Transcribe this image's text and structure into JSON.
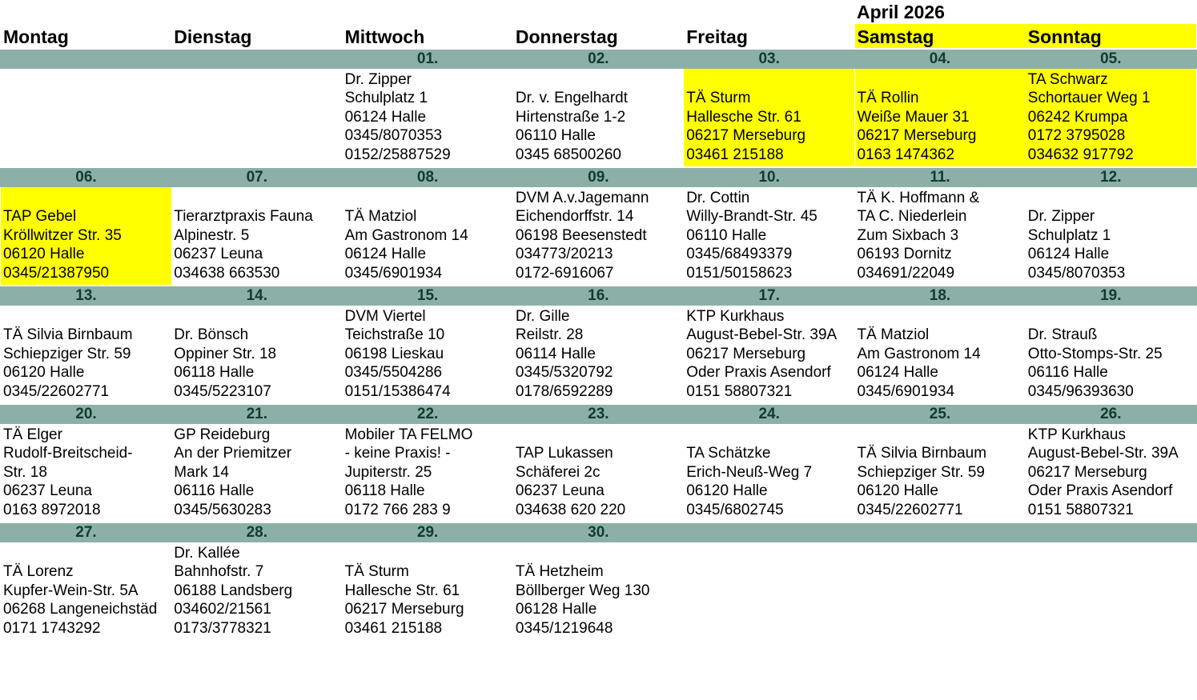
{
  "title": "April 2026",
  "highlight_color": "#ffff00",
  "bar_color": "#8cb0a8",
  "weekdays": [
    {
      "label": "Montag",
      "weekend": false
    },
    {
      "label": "Dienstag",
      "weekend": false
    },
    {
      "label": "Mittwoch",
      "weekend": false
    },
    {
      "label": "Donnerstag",
      "weekend": false
    },
    {
      "label": "Freitag",
      "weekend": false
    },
    {
      "label": "Samstag",
      "weekend": true
    },
    {
      "label": "Sonntag",
      "weekend": true
    }
  ],
  "weeks": [
    {
      "days": [
        {
          "date": "",
          "lines": [],
          "highlight": false
        },
        {
          "date": "",
          "lines": [],
          "highlight": false
        },
        {
          "date": "01.",
          "lines": [
            "Dr. Zipper",
            "Schulplatz 1",
            "06124 Halle",
            "0345/8070353",
            "0152/25887529"
          ],
          "highlight": false
        },
        {
          "date": "02.",
          "lines": [
            "Dr. v. Engelhardt",
            "Hirtenstraße 1-2",
            "06110 Halle",
            "0345 68500260"
          ],
          "highlight": false
        },
        {
          "date": "03.",
          "lines": [
            "TÄ Sturm",
            "Hallesche Str. 61",
            "06217 Merseburg",
            "03461 215188"
          ],
          "highlight": true
        },
        {
          "date": "04.",
          "lines": [
            "TÄ Rollin",
            "Weiße Mauer 31",
            "06217 Merseburg",
            "0163 1474362"
          ],
          "highlight": true
        },
        {
          "date": "05.",
          "lines": [
            "TA Schwarz",
            "Schortauer Weg 1",
            "06242 Krumpa",
            "0172 3795028",
            "034632 917792"
          ],
          "highlight": true
        }
      ]
    },
    {
      "days": [
        {
          "date": "06.",
          "lines": [
            "TAP Gebel",
            "Kröllwitzer Str. 35",
            "06120 Halle",
            "0345/21387950"
          ],
          "highlight": true
        },
        {
          "date": "07.",
          "lines": [
            "Tierarztpraxis Fauna",
            "Alpinestr. 5",
            "06237 Leuna",
            "034638 663530"
          ],
          "highlight": false
        },
        {
          "date": "08.",
          "lines": [
            "TÄ Matziol",
            "Am Gastronom 14",
            "06124 Halle",
            "0345/6901934"
          ],
          "highlight": false
        },
        {
          "date": "09.",
          "lines": [
            "DVM A.v.Jagemann",
            "Eichendorffstr. 14",
            "06198 Beesenstedt",
            "034773/20213",
            "0172-6916067"
          ],
          "highlight": false
        },
        {
          "date": "10.",
          "lines": [
            "Dr. Cottin",
            "Willy-Brandt-Str. 45",
            "06110 Halle",
            "0345/68493379",
            "0151/50158623"
          ],
          "highlight": false
        },
        {
          "date": "11.",
          "lines": [
            "TÄ K. Hoffmann &",
            "TA C. Niederlein",
            "Zum Sixbach 3",
            "06193 Dornitz",
            "034691/22049"
          ],
          "highlight": false
        },
        {
          "date": "12.",
          "lines": [
            "Dr. Zipper",
            "Schulplatz 1",
            "06124 Halle",
            "0345/8070353"
          ],
          "highlight": false
        }
      ]
    },
    {
      "days": [
        {
          "date": "13.",
          "lines": [
            "TÄ Silvia Birnbaum",
            "Schiepziger Str. 59",
            "06120 Halle",
            "0345/22602771"
          ],
          "highlight": false
        },
        {
          "date": "14.",
          "lines": [
            "Dr. Bönsch",
            "Oppiner Str. 18",
            "06118 Halle",
            "0345/5223107"
          ],
          "highlight": false
        },
        {
          "date": "15.",
          "lines": [
            "DVM Viertel",
            "Teichstraße 10",
            "06198 Lieskau",
            "0345/5504286",
            "0151/15386474"
          ],
          "highlight": false
        },
        {
          "date": "16.",
          "lines": [
            "Dr. Gille",
            "Reilstr. 28",
            "06114 Halle",
            "0345/5320792",
            "0178/6592289"
          ],
          "highlight": false
        },
        {
          "date": "17.",
          "lines": [
            "KTP Kurkhaus",
            "August-Bebel-Str. 39A",
            "06217 Merseburg",
            "Oder Praxis Asendorf",
            "0151 58807321"
          ],
          "highlight": false
        },
        {
          "date": "18.",
          "lines": [
            "TÄ Matziol",
            "Am Gastronom 14",
            "06124 Halle",
            "0345/6901934"
          ],
          "highlight": false
        },
        {
          "date": "19.",
          "lines": [
            "Dr. Strauß",
            "Otto-Stomps-Str. 25",
            "06116 Halle",
            "0345/96393630"
          ],
          "highlight": false
        }
      ]
    },
    {
      "days": [
        {
          "date": "20.",
          "lines": [
            "TÄ Elger",
            "Rudolf-Breitscheid-",
            "Str. 18",
            "06237 Leuna",
            "0163 8972018"
          ],
          "highlight": false
        },
        {
          "date": "21.",
          "lines": [
            "GP Reideburg",
            "An der Priemitzer",
            "Mark 14",
            "06116 Halle",
            "0345/5630283"
          ],
          "highlight": false
        },
        {
          "date": "22.",
          "lines": [
            "Mobiler TA FELMO",
            "- keine Praxis! -",
            "Jupiterstr. 25",
            "06118 Halle",
            "0172 766 283 9"
          ],
          "highlight": false
        },
        {
          "date": "23.",
          "lines": [
            "TAP Lukassen",
            "Schäferei 2c",
            "06237 Leuna",
            "034638 620 220"
          ],
          "highlight": false
        },
        {
          "date": "24.",
          "lines": [
            "TA Schätzke",
            "Erich-Neuß-Weg 7",
            "06120 Halle",
            "0345/6802745"
          ],
          "highlight": false
        },
        {
          "date": "25.",
          "lines": [
            "TÄ Silvia Birnbaum",
            "Schiepziger Str. 59",
            "06120 Halle",
            "0345/22602771"
          ],
          "highlight": false
        },
        {
          "date": "26.",
          "lines": [
            "KTP Kurkhaus",
            "August-Bebel-Str. 39A",
            "06217 Merseburg",
            "Oder Praxis Asendorf",
            "0151 58807321"
          ],
          "highlight": false
        }
      ]
    },
    {
      "days": [
        {
          "date": "27.",
          "lines": [
            "TÄ Lorenz",
            "Kupfer-Wein-Str. 5A",
            "06268 Langeneichstäd",
            "0171 1743292"
          ],
          "highlight": false
        },
        {
          "date": "28.",
          "lines": [
            "Dr. Kallée",
            "Bahnhofstr. 7",
            "06188 Landsberg",
            "034602/21561",
            "0173/3778321"
          ],
          "highlight": false
        },
        {
          "date": "29.",
          "lines": [
            "TÄ Sturm",
            "Hallesche Str. 61",
            "06217 Merseburg",
            "03461 215188"
          ],
          "highlight": false
        },
        {
          "date": "30.",
          "lines": [
            "TÄ Hetzheim",
            "Böllberger Weg 130",
            "06128 Halle",
            "0345/1219648"
          ],
          "highlight": false
        },
        {
          "date": "",
          "lines": [],
          "highlight": false
        },
        {
          "date": "",
          "lines": [],
          "highlight": false
        },
        {
          "date": "",
          "lines": [],
          "highlight": false
        }
      ]
    }
  ]
}
